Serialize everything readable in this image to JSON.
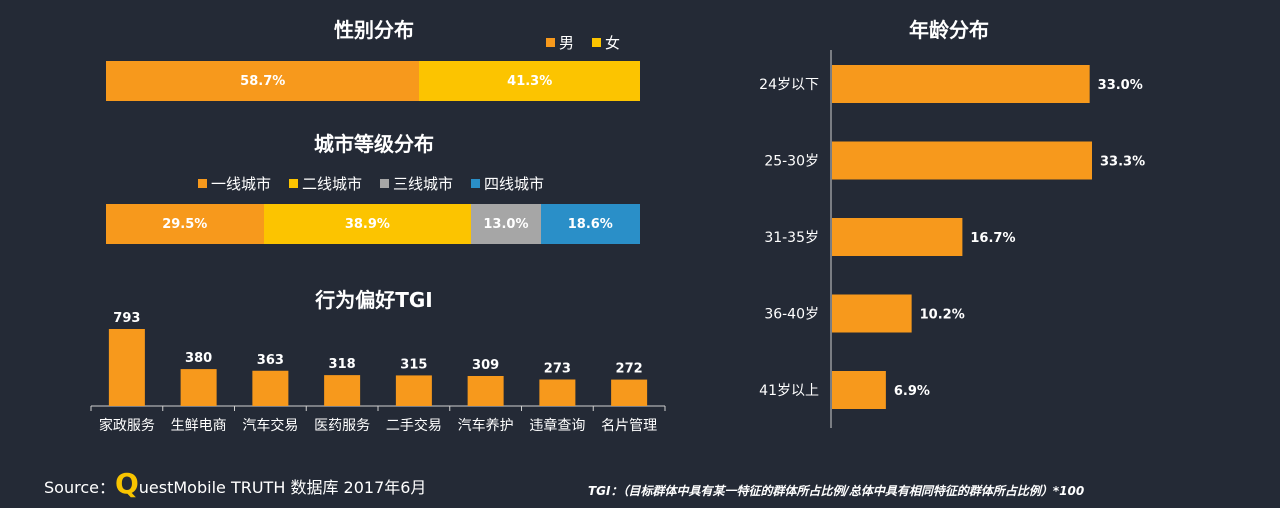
{
  "colors": {
    "background": "#242a36",
    "orange": "#f7991c",
    "yellow": "#fcc400",
    "gray": "#a6a6a6",
    "blue": "#2a8fc8",
    "axis": "#d0d0d0"
  },
  "chart_data": [
    {
      "type": "bar",
      "orientation": "horizontal-stacked",
      "title": "性别分布",
      "legend_position": "top-right",
      "series": [
        {
          "name": "男",
          "value": 58.7,
          "label": "58.7%",
          "color": "#f7991c"
        },
        {
          "name": "女",
          "value": 41.3,
          "label": "41.3%",
          "color": "#fcc400"
        }
      ]
    },
    {
      "type": "bar",
      "orientation": "horizontal-stacked",
      "title": "城市等级分布",
      "legend_position": "top",
      "series": [
        {
          "name": "一线城市",
          "value": 29.5,
          "label": "29.5%",
          "color": "#f7991c"
        },
        {
          "name": "二线城市",
          "value": 38.9,
          "label": "38.9%",
          "color": "#fcc400"
        },
        {
          "name": "三线城市",
          "value": 13.0,
          "label": "13.0%",
          "color": "#a6a6a6"
        },
        {
          "name": "四线城市",
          "value": 18.6,
          "label": "18.6%",
          "color": "#2a8fc8"
        }
      ]
    },
    {
      "type": "bar",
      "title": "行为偏好TGI",
      "categories": [
        "家政服务",
        "生鲜电商",
        "汽车交易",
        "医药服务",
        "二手交易",
        "汽车养护",
        "违章查询",
        "名片管理"
      ],
      "values": [
        793,
        380,
        363,
        318,
        315,
        309,
        273,
        272
      ],
      "ylim": [
        0,
        793
      ]
    },
    {
      "type": "bar",
      "orientation": "horizontal",
      "title": "年龄分布",
      "categories": [
        "24岁以下",
        "25-30岁",
        "31-35岁",
        "36-40岁",
        "41岁以上"
      ],
      "values": [
        33.0,
        33.3,
        16.7,
        10.2,
        6.9
      ],
      "value_labels": [
        "33.0%",
        "33.3%",
        "16.7%",
        "10.2%",
        "6.9%"
      ],
      "xlim": [
        0,
        33.3
      ]
    }
  ],
  "footer": {
    "source_prefix": "Source：",
    "source_q": "Q",
    "source_rest": "uestMobile TRUTH 数据库 2017年6月",
    "note": "TGI：（目标群体中具有某一特征的群体所占比例/总体中具有相同特征的群体所占比例）*100"
  }
}
